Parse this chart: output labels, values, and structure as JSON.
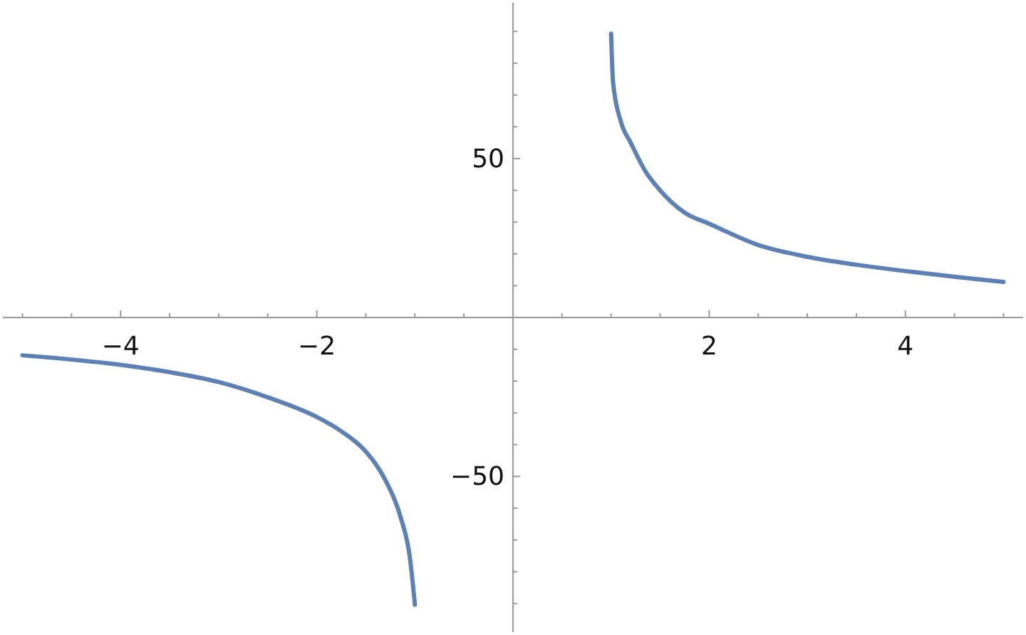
{
  "chart_data": {
    "type": "line",
    "xlim": [
      -5.2,
      5.2
    ],
    "ylim": [
      -99,
      99
    ],
    "xticks": [
      {
        "value": -5,
        "label": null
      },
      {
        "value": -4.5,
        "label": null
      },
      {
        "value": -4,
        "label": "−4"
      },
      {
        "value": -3.5,
        "label": null
      },
      {
        "value": -3,
        "label": null
      },
      {
        "value": -2.5,
        "label": null
      },
      {
        "value": -2,
        "label": "−2"
      },
      {
        "value": -1.5,
        "label": null
      },
      {
        "value": -1,
        "label": null
      },
      {
        "value": -0.5,
        "label": null
      },
      {
        "value": 0.5,
        "label": null
      },
      {
        "value": 1,
        "label": null
      },
      {
        "value": 1.5,
        "label": null
      },
      {
        "value": 2,
        "label": "2"
      },
      {
        "value": 2.5,
        "label": null
      },
      {
        "value": 3,
        "label": null
      },
      {
        "value": 3.5,
        "label": null
      },
      {
        "value": 4,
        "label": "4"
      },
      {
        "value": 4.5,
        "label": null
      },
      {
        "value": 5,
        "label": null
      }
    ],
    "yticks": [
      {
        "value": -90,
        "label": null
      },
      {
        "value": -80,
        "label": null
      },
      {
        "value": -70,
        "label": null
      },
      {
        "value": -60,
        "label": null
      },
      {
        "value": -50,
        "label": "−50"
      },
      {
        "value": -40,
        "label": null
      },
      {
        "value": -30,
        "label": null
      },
      {
        "value": -20,
        "label": null
      },
      {
        "value": -10,
        "label": null
      },
      {
        "value": 10,
        "label": null
      },
      {
        "value": 20,
        "label": null
      },
      {
        "value": 30,
        "label": null
      },
      {
        "value": 40,
        "label": null
      },
      {
        "value": 50,
        "label": "50"
      },
      {
        "value": 60,
        "label": null
      },
      {
        "value": 70,
        "label": null
      },
      {
        "value": 80,
        "label": null
      },
      {
        "value": 90,
        "label": null
      }
    ],
    "series": [
      {
        "color": "#5e81b5",
        "x": [
          -5,
          -4,
          -3.5,
          -3,
          -2.5,
          -2,
          -1.75,
          -1.5,
          -1.3,
          -1.15,
          -1.05,
          -1
        ],
        "values": [
          -11.9,
          -14.9,
          -17.2,
          -20.3,
          -25.1,
          -31.3,
          -35.8,
          -42.2,
          -51.2,
          -62.4,
          -75.8,
          -90.4
        ]
      },
      {
        "color": "#5e81b5",
        "x": [
          1,
          1.02,
          1.1,
          1.2,
          1.35,
          1.5,
          1.75,
          2,
          2.5,
          3,
          3.5,
          4,
          4.5,
          5
        ],
        "values": [
          89.3,
          74,
          61.6,
          55,
          46,
          40,
          33,
          29.5,
          22.8,
          19.1,
          16.6,
          14.6,
          12.8,
          11.2
        ]
      }
    ]
  }
}
